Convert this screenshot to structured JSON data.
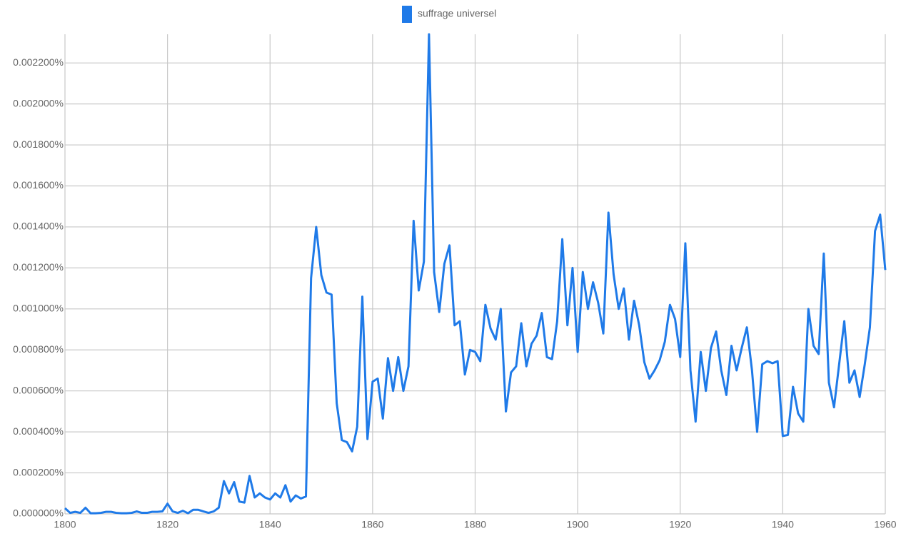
{
  "chart_data": {
    "type": "line",
    "x": [
      1800,
      1801,
      1802,
      1803,
      1804,
      1805,
      1806,
      1807,
      1808,
      1809,
      1810,
      1811,
      1812,
      1813,
      1814,
      1815,
      1816,
      1817,
      1818,
      1819,
      1820,
      1821,
      1822,
      1823,
      1824,
      1825,
      1826,
      1827,
      1828,
      1829,
      1830,
      1831,
      1832,
      1833,
      1834,
      1835,
      1836,
      1837,
      1838,
      1839,
      1840,
      1841,
      1842,
      1843,
      1844,
      1845,
      1846,
      1847,
      1848,
      1849,
      1850,
      1851,
      1852,
      1853,
      1854,
      1855,
      1856,
      1857,
      1858,
      1859,
      1860,
      1861,
      1862,
      1863,
      1864,
      1865,
      1866,
      1867,
      1868,
      1869,
      1870,
      1871,
      1872,
      1873,
      1874,
      1875,
      1876,
      1877,
      1878,
      1879,
      1880,
      1881,
      1882,
      1883,
      1884,
      1885,
      1886,
      1887,
      1888,
      1889,
      1890,
      1891,
      1892,
      1893,
      1894,
      1895,
      1896,
      1897,
      1898,
      1899,
      1900,
      1901,
      1902,
      1903,
      1904,
      1905,
      1906,
      1907,
      1908,
      1909,
      1910,
      1911,
      1912,
      1913,
      1914,
      1915,
      1916,
      1917,
      1918,
      1919,
      1920,
      1921,
      1922,
      1923,
      1924,
      1925,
      1926,
      1927,
      1928,
      1929,
      1930,
      1931,
      1932,
      1933,
      1934,
      1935,
      1936,
      1937,
      1938,
      1939,
      1940,
      1941,
      1942,
      1943,
      1944,
      1945,
      1946,
      1947,
      1948,
      1949,
      1950,
      1951,
      1952,
      1953,
      1954,
      1955,
      1956,
      1957,
      1958,
      1959,
      1960
    ],
    "series": [
      {
        "name": "suffrage universel",
        "color": "#1f7ae8",
        "values": [
          2.8e-05,
          5e-06,
          1e-05,
          5e-06,
          3e-05,
          3e-06,
          3e-06,
          5e-06,
          1e-05,
          1e-05,
          5e-06,
          3e-06,
          3e-06,
          5e-06,
          1.2e-05,
          5e-06,
          5e-06,
          1e-05,
          1e-05,
          1.2e-05,
          5e-05,
          1.2e-05,
          5e-06,
          1.5e-05,
          3e-06,
          2e-05,
          2e-05,
          1.2e-05,
          5e-06,
          1.2e-05,
          3e-05,
          0.00016,
          0.0001,
          0.000155,
          6e-05,
          5.5e-05,
          0.000185,
          8e-05,
          0.0001,
          8e-05,
          7e-05,
          0.0001,
          8e-05,
          0.00014,
          6e-05,
          9e-05,
          7.5e-05,
          8.5e-05,
          0.00115,
          0.0014,
          0.001165,
          0.00108,
          0.00107,
          0.00054,
          0.00036,
          0.00035,
          0.000305,
          0.000425,
          0.00106,
          0.000365,
          0.000645,
          0.00066,
          0.000465,
          0.00076,
          0.0006,
          0.000765,
          0.0006,
          0.00072,
          0.00143,
          0.00109,
          0.00123,
          0.00234,
          0.00118,
          0.000985,
          0.00122,
          0.00131,
          0.00092,
          0.00094,
          0.00068,
          0.0008,
          0.00079,
          0.000745,
          0.00102,
          0.000905,
          0.00085,
          0.001,
          0.0005,
          0.00069,
          0.00072,
          0.00093,
          0.00072,
          0.00083,
          0.00087,
          0.00098,
          0.000765,
          0.000755,
          0.00094,
          0.00134,
          0.00092,
          0.0012,
          0.00079,
          0.00118,
          0.001,
          0.00113,
          0.00103,
          0.00088,
          0.00147,
          0.00117,
          0.001,
          0.0011,
          0.00085,
          0.00104,
          0.00092,
          0.00074,
          0.00066,
          0.0007,
          0.00075,
          0.00084,
          0.00102,
          0.00095,
          0.000765,
          0.00132,
          0.0007,
          0.00045,
          0.00079,
          0.0006,
          0.00081,
          0.00089,
          0.0007,
          0.00058,
          0.00082,
          0.0007,
          0.00081,
          0.00091,
          0.0007,
          0.0004,
          0.00073,
          0.000745,
          0.000735,
          0.000745,
          0.00038,
          0.000385,
          0.00062,
          0.00049,
          0.00045,
          0.001,
          0.00082,
          0.00078,
          0.00127,
          0.00064,
          0.00052,
          0.00073,
          0.00094,
          0.00064,
          0.0007,
          0.00057,
          0.00073,
          0.00091,
          0.00138,
          0.00146,
          0.00119
        ]
      }
    ],
    "xlim": [
      1800,
      1960
    ],
    "xticks": [
      1800,
      1820,
      1840,
      1860,
      1880,
      1900,
      1920,
      1940,
      1960
    ],
    "ylim": [
      0,
      0.00234
    ],
    "yticks": [
      {
        "value": 0,
        "label": "0.000000%"
      },
      {
        "value": 0.0002,
        "label": "0.000200%"
      },
      {
        "value": 0.0004,
        "label": "0.000400%"
      },
      {
        "value": 0.0006,
        "label": "0.000600%"
      },
      {
        "value": 0.0008,
        "label": "0.000800%"
      },
      {
        "value": 0.001,
        "label": "0.001000%"
      },
      {
        "value": 0.0012,
        "label": "0.001200%"
      },
      {
        "value": 0.0014,
        "label": "0.001400%"
      },
      {
        "value": 0.0016,
        "label": "0.001600%"
      },
      {
        "value": 0.0018,
        "label": "0.001800%"
      },
      {
        "value": 0.002,
        "label": "0.002000%"
      },
      {
        "value": 0.0022,
        "label": "0.002200%"
      }
    ],
    "grid": true,
    "legend": "top"
  }
}
